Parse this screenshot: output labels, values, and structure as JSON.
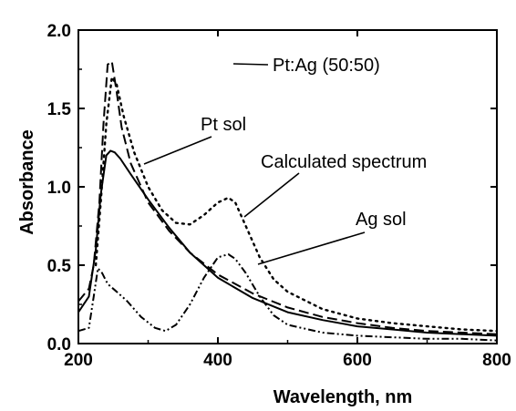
{
  "chart_data": {
    "type": "line",
    "title": "",
    "xlabel": "Wavelength, nm",
    "ylabel": "Absorbance",
    "xlim": [
      200,
      800
    ],
    "ylim": [
      0.0,
      2.0
    ],
    "xticks": [
      200,
      400,
      600,
      800
    ],
    "xtick_labels": [
      "200",
      "400",
      "600",
      "800"
    ],
    "yticks": [
      0.0,
      0.5,
      1.0,
      1.5,
      2.0
    ],
    "ytick_labels": [
      "0.0",
      "0.5",
      "1.0",
      "1.5",
      "2.0"
    ],
    "grid": false,
    "legend": "none",
    "series": [
      {
        "name": "Pt sol",
        "style": "solid",
        "x": [
          200,
          215,
          225,
          232,
          240,
          246,
          252,
          260,
          275,
          300,
          330,
          360,
          400,
          450,
          500,
          550,
          600,
          650,
          700,
          750,
          800
        ],
        "values": [
          0.2,
          0.3,
          0.6,
          0.95,
          1.2,
          1.23,
          1.22,
          1.18,
          1.08,
          0.92,
          0.74,
          0.58,
          0.42,
          0.29,
          0.2,
          0.15,
          0.11,
          0.09,
          0.07,
          0.06,
          0.05
        ]
      },
      {
        "name": "Pt:Ag (50:50)",
        "style": "dashed",
        "x": [
          200,
          215,
          222,
          230,
          236,
          242,
          248,
          255,
          262,
          275,
          300,
          330,
          360,
          400,
          450,
          500,
          550,
          600,
          650,
          700,
          750,
          800
        ],
        "values": [
          0.27,
          0.35,
          0.5,
          0.9,
          1.4,
          1.78,
          1.8,
          1.6,
          1.38,
          1.15,
          0.9,
          0.72,
          0.58,
          0.44,
          0.32,
          0.23,
          0.17,
          0.13,
          0.1,
          0.08,
          0.07,
          0.06
        ]
      },
      {
        "name": "Calculated spectrum",
        "style": "dotted",
        "x": [
          225,
          232,
          240,
          248,
          255,
          265,
          280,
          300,
          320,
          340,
          360,
          380,
          400,
          415,
          425,
          440,
          460,
          480,
          500,
          550,
          600,
          650,
          700,
          750,
          800
        ],
        "values": [
          0.5,
          0.9,
          1.4,
          1.7,
          1.65,
          1.45,
          1.22,
          1.0,
          0.85,
          0.77,
          0.76,
          0.82,
          0.9,
          0.93,
          0.9,
          0.75,
          0.55,
          0.41,
          0.33,
          0.22,
          0.16,
          0.13,
          0.11,
          0.09,
          0.08
        ]
      },
      {
        "name": "Ag sol",
        "style": "dash-dot-dot",
        "x": [
          200,
          215,
          222,
          228,
          234,
          242,
          255,
          270,
          290,
          310,
          325,
          340,
          360,
          380,
          400,
          415,
          425,
          440,
          460,
          480,
          500,
          550,
          600,
          650,
          700,
          750,
          800
        ],
        "values": [
          0.08,
          0.1,
          0.3,
          0.48,
          0.45,
          0.38,
          0.33,
          0.27,
          0.17,
          0.1,
          0.08,
          0.12,
          0.25,
          0.42,
          0.55,
          0.57,
          0.54,
          0.45,
          0.3,
          0.18,
          0.12,
          0.07,
          0.05,
          0.04,
          0.03,
          0.03,
          0.02
        ]
      }
    ],
    "annotations": [
      {
        "text": "Pt:Ag (50:50)"
      },
      {
        "text": "Pt sol"
      },
      {
        "text": "Calculated spectrum"
      },
      {
        "text": "Ag sol"
      }
    ]
  }
}
